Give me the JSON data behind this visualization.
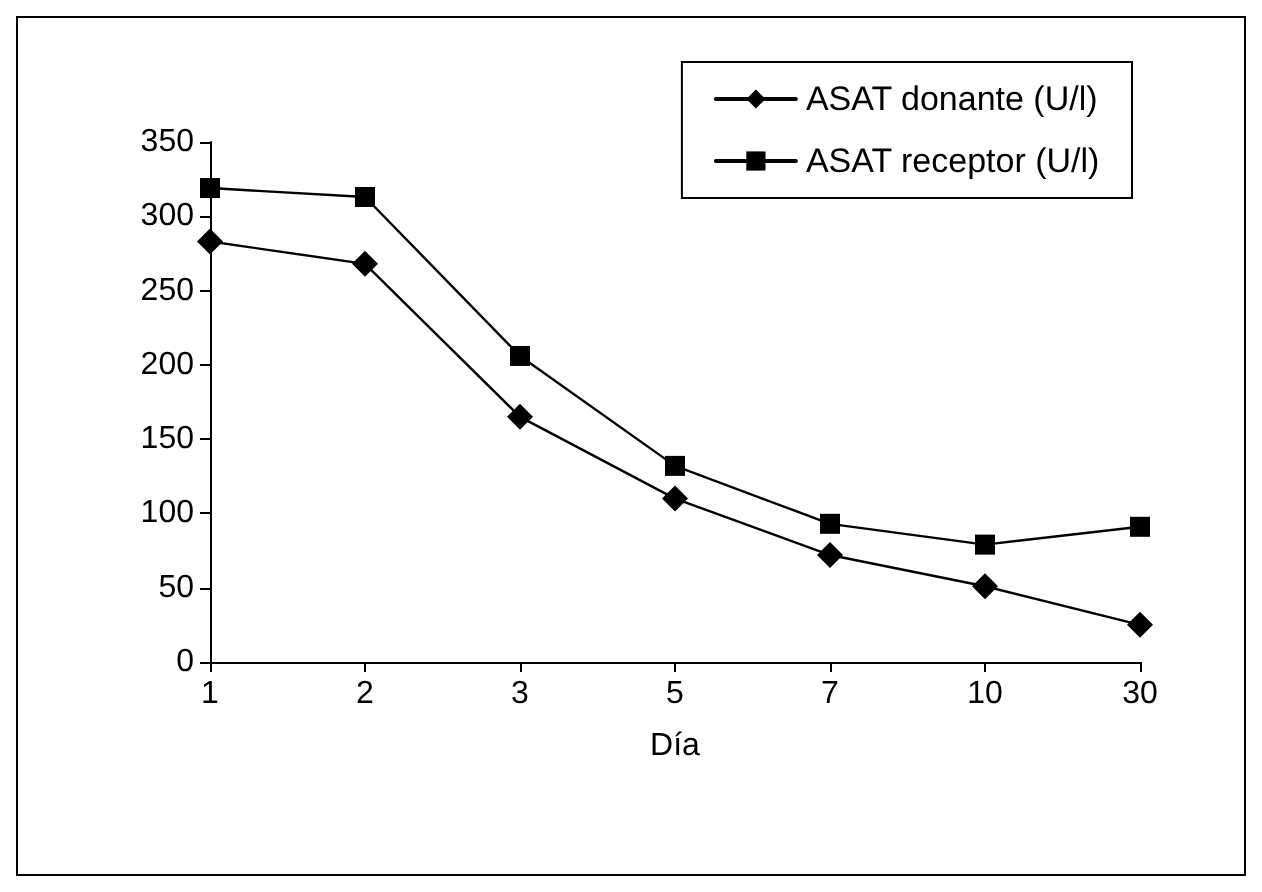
{
  "chart_data": {
    "type": "line",
    "xlabel": "Día",
    "categories": [
      "1",
      "2",
      "3",
      "5",
      "7",
      "10",
      "30"
    ],
    "series": [
      {
        "name": "ASAT donante (U/l)",
        "color": "#000000",
        "marker": "diamond",
        "values": [
          283,
          268,
          165,
          110,
          72,
          51,
          25
        ]
      },
      {
        "name": "ASAT receptor (U/l)",
        "color": "#000000",
        "marker": "square",
        "values": [
          319,
          313,
          206,
          132,
          93,
          79,
          91
        ]
      }
    ],
    "ylim": [
      0,
      350
    ],
    "yticks": [
      0,
      50,
      100,
      150,
      200,
      250,
      300,
      350
    ],
    "grid": false,
    "legend": "top right",
    "line_style": "solid"
  }
}
